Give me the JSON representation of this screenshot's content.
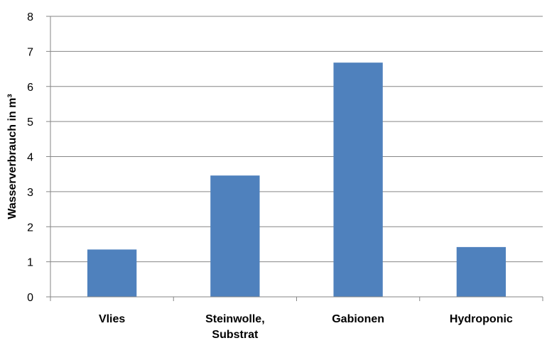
{
  "chart_data": {
    "type": "bar",
    "categories": [
      "Vlies",
      "Steinwolle,\nSubstrat",
      "Gabionen",
      "Hydroponic"
    ],
    "values": [
      1.35,
      3.46,
      6.68,
      1.42
    ],
    "ylabel": "Wasserverbrauch in m³",
    "ylim": [
      0,
      8
    ],
    "yticks": [
      0,
      1,
      2,
      3,
      4,
      5,
      6,
      7,
      8
    ],
    "grid": true,
    "legend": "none",
    "bar_color": "#4F81BD"
  }
}
